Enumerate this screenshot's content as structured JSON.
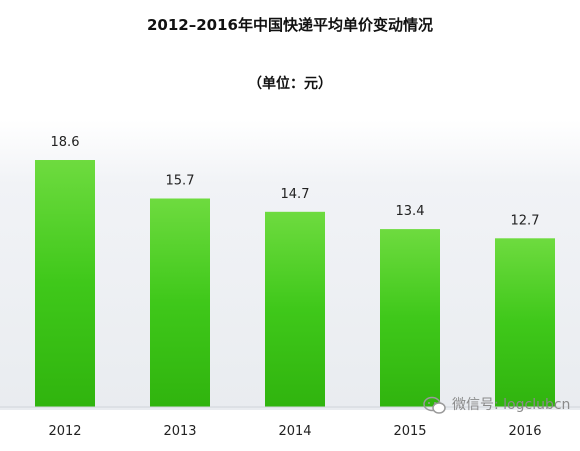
{
  "chart_data": {
    "type": "bar",
    "title": "2012–2016年中国快递平均单价变动情况",
    "subtitle": "（单位：元）",
    "categories": [
      "2012",
      "2013",
      "2014",
      "2015",
      "2016"
    ],
    "values": [
      18.6,
      15.7,
      14.7,
      13.4,
      12.7
    ],
    "value_labels": [
      "18.6",
      "15.7",
      "14.7",
      "13.4",
      "12.7"
    ],
    "xlabel": "",
    "ylabel": "",
    "ylim": [
      0,
      18.6
    ],
    "grid": false,
    "legend": "none",
    "colors": {
      "bar_top": "#6EDB3F",
      "bar_mid": "#3FC81A",
      "bar_bottom": "#30B40E",
      "plot_bg": "#EEF1F5",
      "baseline": "#D0D4DA"
    }
  },
  "watermark": {
    "text": "微信号: logclubcn",
    "icon": "wechat-icon"
  }
}
